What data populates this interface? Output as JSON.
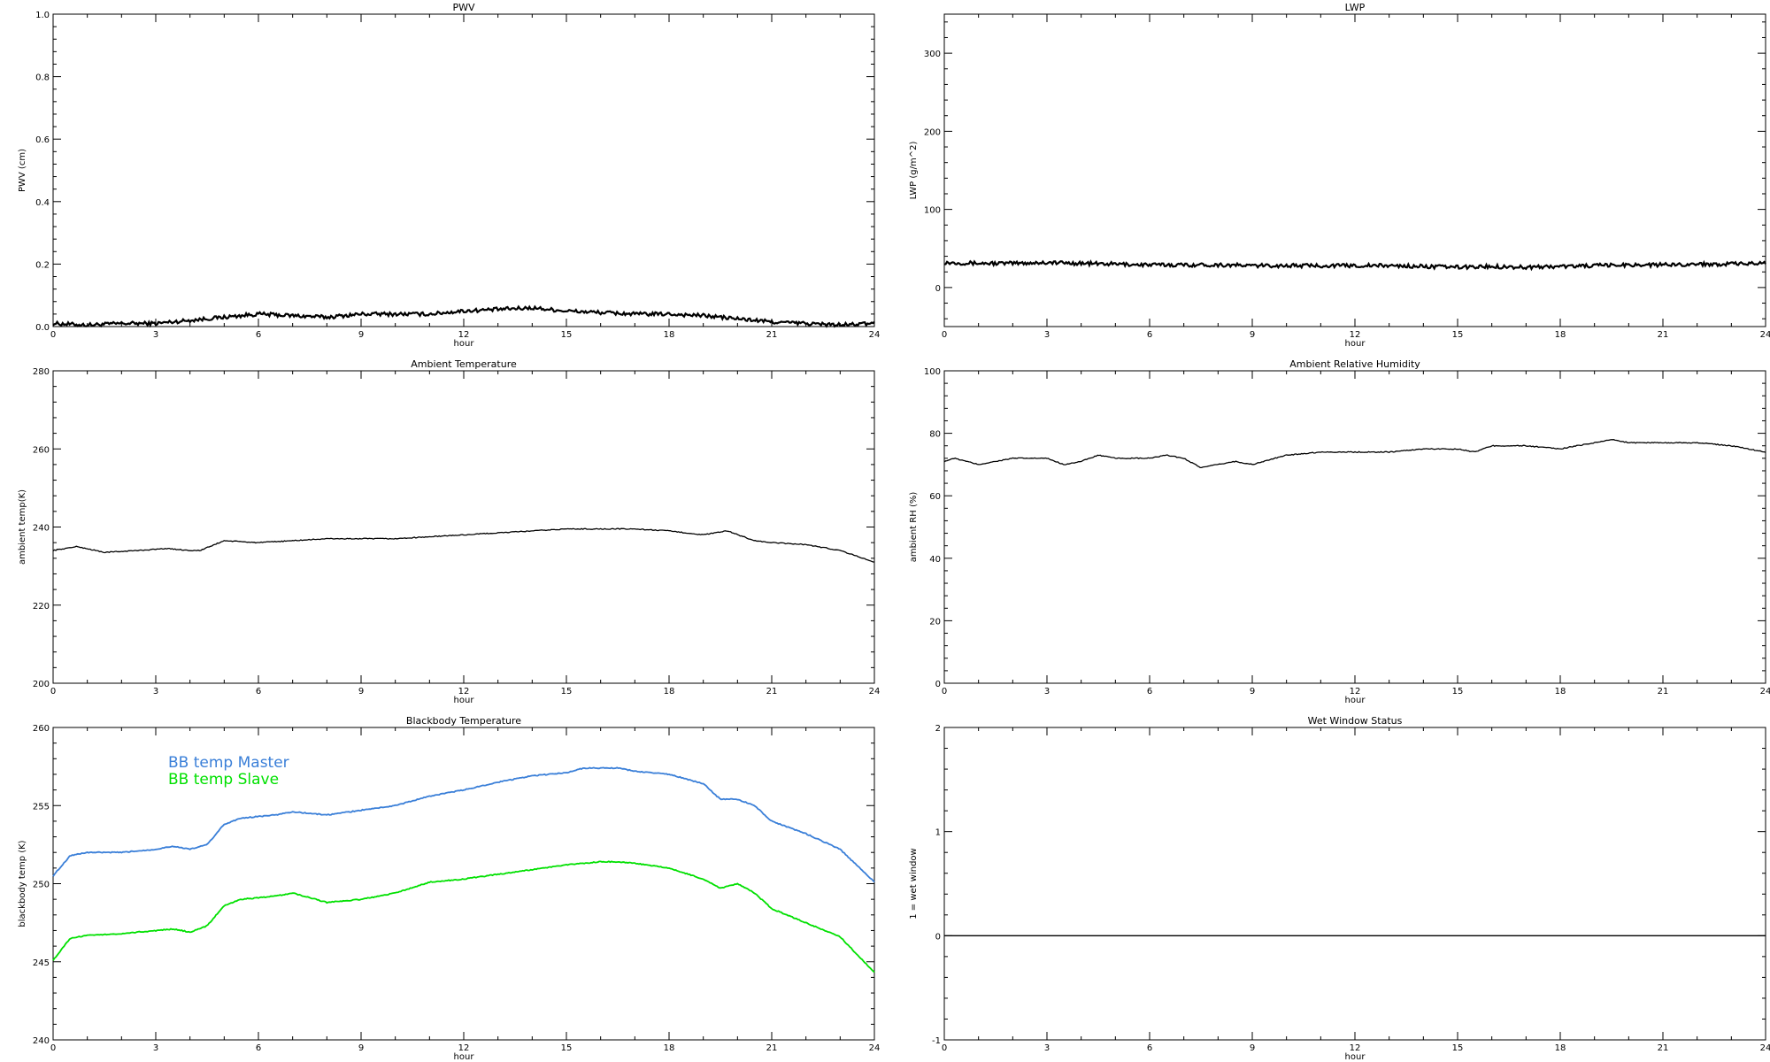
{
  "chart_data": [
    {
      "type": "line",
      "title": "PWV",
      "xlabel": "hour",
      "ylabel": "PWV (cm)",
      "xlim": [
        0,
        24
      ],
      "ylim": [
        0,
        1
      ],
      "xticks": [
        "0",
        "3",
        "6",
        "9",
        "12",
        "15",
        "18",
        "21",
        "24"
      ],
      "yticks": [
        "0.0",
        "0.2",
        "0.4",
        "0.6",
        "0.8",
        "1.0"
      ],
      "noisy": true,
      "series": [
        {
          "x": [
            0,
            1,
            2,
            3,
            4,
            5,
            6,
            7,
            8,
            9,
            10,
            11,
            12,
            13,
            14,
            15,
            16,
            17,
            18,
            19,
            20,
            21,
            22,
            23,
            24
          ],
          "y": [
            0.01,
            0.005,
            0.01,
            0.01,
            0.02,
            0.03,
            0.04,
            0.035,
            0.03,
            0.04,
            0.04,
            0.04,
            0.05,
            0.055,
            0.06,
            0.05,
            0.045,
            0.04,
            0.04,
            0.035,
            0.025,
            0.015,
            0.01,
            0.005,
            0.01
          ],
          "color": "#000000"
        }
      ]
    },
    {
      "type": "line",
      "title": "LWP",
      "xlabel": "hour",
      "ylabel": "LWP (g/m^2)",
      "xlim": [
        0,
        24
      ],
      "ylim": [
        -50,
        350
      ],
      "xticks": [
        "0",
        "3",
        "6",
        "9",
        "12",
        "15",
        "18",
        "21",
        "24"
      ],
      "yticks": [
        "0",
        "100",
        "200",
        "300"
      ],
      "noisy": true,
      "series": [
        {
          "x": [
            0,
            1,
            2,
            3,
            4,
            5,
            6,
            7,
            8,
            9,
            10,
            11,
            12,
            13,
            14,
            15,
            16,
            17,
            18,
            19,
            20,
            21,
            22,
            23,
            24
          ],
          "y": [
            32,
            31,
            31,
            32,
            31,
            30,
            29,
            29,
            29,
            28,
            28,
            28,
            28,
            28,
            27,
            26,
            27,
            26,
            27,
            28,
            29,
            29,
            30,
            30,
            31
          ],
          "color": "#000000"
        }
      ]
    },
    {
      "type": "line",
      "title": "Ambient Temperature",
      "xlabel": "hour",
      "ylabel": "ambient temp(K)",
      "xlim": [
        0,
        24
      ],
      "ylim": [
        200,
        280
      ],
      "xticks": [
        "0",
        "3",
        "6",
        "9",
        "12",
        "15",
        "18",
        "21",
        "24"
      ],
      "yticks": [
        "200",
        "220",
        "240",
        "260",
        "280"
      ],
      "series": [
        {
          "x": [
            0,
            0.7,
            1.5,
            2.5,
            3.3,
            4,
            4.3,
            5,
            6,
            7,
            8,
            9,
            10,
            11,
            12,
            13,
            14,
            15,
            16,
            17,
            18,
            19,
            19.7,
            20.5,
            21,
            22,
            23,
            24
          ],
          "y": [
            234,
            235,
            233.5,
            234,
            234.5,
            234,
            234,
            236.5,
            236,
            236.5,
            237,
            237,
            237,
            237.5,
            238,
            238.5,
            239,
            239.5,
            239.5,
            239.5,
            239,
            238,
            239,
            236.5,
            236,
            235.5,
            234,
            231
          ],
          "color": "#000000"
        }
      ]
    },
    {
      "type": "line",
      "title": "Ambient Relative Humidity",
      "xlabel": "hour",
      "ylabel": "ambient RH (%)",
      "xlim": [
        0,
        24
      ],
      "ylim": [
        0,
        100
      ],
      "xticks": [
        "0",
        "3",
        "6",
        "9",
        "12",
        "15",
        "18",
        "21",
        "24"
      ],
      "yticks": [
        "0",
        "20",
        "40",
        "60",
        "80",
        "100"
      ],
      "series": [
        {
          "x": [
            0,
            0.3,
            1,
            1.5,
            2,
            3,
            3.5,
            4,
            4.5,
            5,
            6,
            6.5,
            7,
            7.5,
            8,
            8.5,
            9,
            10,
            11,
            12,
            13,
            14,
            15,
            15.5,
            16,
            17,
            18,
            19,
            19.5,
            20,
            21,
            22,
            23,
            24
          ],
          "y": [
            71,
            72,
            70,
            71,
            72,
            72,
            70,
            71,
            73,
            72,
            72,
            73,
            72,
            69,
            70,
            71,
            70,
            73,
            74,
            74,
            74,
            75,
            75,
            74,
            76,
            76,
            75,
            77,
            78,
            77,
            77,
            77,
            76,
            74
          ],
          "color": "#000000"
        }
      ]
    },
    {
      "type": "line",
      "title": "Blackbody Temperature",
      "xlabel": "hour",
      "ylabel": "blackbody temp (K)",
      "xlim": [
        0,
        24
      ],
      "ylim": [
        240,
        260
      ],
      "xticks": [
        "0",
        "3",
        "6",
        "9",
        "12",
        "15",
        "18",
        "21",
        "24"
      ],
      "yticks": [
        "240",
        "245",
        "250",
        "255",
        "260"
      ],
      "legend_position": "top-left",
      "series": [
        {
          "name": "BB temp Master",
          "x": [
            0,
            0.5,
            1,
            2,
            3,
            3.5,
            4,
            4.5,
            5,
            5.5,
            6,
            6.5,
            7,
            7.5,
            8,
            9,
            10,
            11,
            12,
            13,
            14,
            15,
            15.5,
            16,
            16.5,
            17,
            18,
            19,
            19.5,
            20,
            20.5,
            21,
            22,
            23,
            24
          ],
          "y": [
            250.5,
            251.8,
            252,
            252,
            252.2,
            252.4,
            252.2,
            252.5,
            253.8,
            254.2,
            254.3,
            254.4,
            254.6,
            254.5,
            254.4,
            254.7,
            255,
            255.6,
            256,
            256.5,
            256.9,
            257.1,
            257.4,
            257.4,
            257.4,
            257.2,
            257,
            256.4,
            255.4,
            255.4,
            255,
            254,
            253.2,
            252.2,
            250.1
          ],
          "color": "#3a7fd8"
        },
        {
          "name": "BB temp Slave",
          "x": [
            0,
            0.5,
            1,
            2,
            3,
            3.5,
            4,
            4.5,
            5,
            5.5,
            6,
            6.5,
            7,
            7.5,
            8,
            9,
            10,
            11,
            12,
            13,
            14,
            15,
            15.5,
            16,
            16.5,
            17,
            18,
            19,
            19.5,
            20,
            20.5,
            21,
            22,
            23,
            24
          ],
          "y": [
            245.1,
            246.5,
            246.7,
            246.8,
            247.0,
            247.1,
            246.9,
            247.3,
            248.6,
            249.0,
            249.1,
            249.2,
            249.4,
            249.1,
            248.8,
            249.0,
            249.4,
            250.1,
            250.3,
            250.6,
            250.9,
            251.2,
            251.3,
            251.4,
            251.4,
            251.3,
            251.0,
            250.3,
            249.7,
            250.0,
            249.4,
            248.4,
            247.5,
            246.6,
            244.3
          ],
          "color": "#00e000"
        }
      ]
    },
    {
      "type": "line",
      "title": "Wet Window Status",
      "xlabel": "hour",
      "ylabel": "1 = wet window",
      "xlim": [
        0,
        24
      ],
      "ylim": [
        -1,
        2
      ],
      "xticks": [
        "0",
        "3",
        "6",
        "9",
        "12",
        "15",
        "18",
        "21",
        "24"
      ],
      "yticks": [
        "-1",
        "0",
        "1",
        "2"
      ],
      "series": [
        {
          "x": [
            0,
            24
          ],
          "y": [
            0,
            0
          ],
          "color": "#000000"
        }
      ]
    }
  ]
}
